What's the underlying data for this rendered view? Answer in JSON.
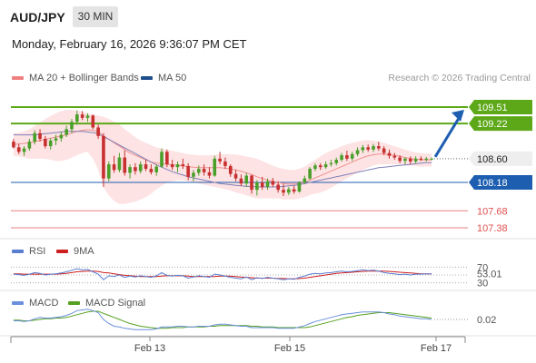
{
  "header": {
    "pair": "AUD/JPY",
    "timeframe": "30 MIN",
    "timestamp": "Monday, February 16, 2026 9:36:07 PM CET",
    "copyright": "Research © 2026 Trading Central"
  },
  "legend": {
    "ma20": "MA 20 + Bollinger Bands",
    "ma50": "MA 50",
    "rsi": "RSI",
    "rsi_ma": "9MA",
    "macd": "MACD",
    "macd_signal": "MACD Signal"
  },
  "colors": {
    "green": "#5da818",
    "blue": "#1e5eb0",
    "red": "#e05050",
    "candle_up": "#4a9e2a",
    "candle_down": "#c73030",
    "band_fill": "#fde0e0",
    "ma20": "#f09090",
    "ma50": "#8080b8",
    "rsi": "#5b7fd0",
    "rsi_ma": "#cc2020",
    "macd": "#6a8fdc",
    "macd_signal": "#55a020",
    "current": "#eeeeee"
  },
  "chart_data": {
    "type": "candlestick",
    "title": "AUD/JPY",
    "x_ticks": [
      "Feb 13",
      "Feb 15",
      "Feb 17"
    ],
    "ylim": [
      107.3,
      109.75
    ],
    "current_price": 108.6,
    "levels": [
      {
        "value": 109.51,
        "label": "109.51",
        "kind": "resistance",
        "style": "box-green"
      },
      {
        "value": 109.22,
        "label": "109.22",
        "kind": "resistance",
        "style": "box-green"
      },
      {
        "value": 108.6,
        "label": "108.60",
        "kind": "current",
        "style": "box-light"
      },
      {
        "value": 108.18,
        "label": "108.18",
        "kind": "pivot",
        "style": "box-blue"
      },
      {
        "value": 107.68,
        "label": "107.68",
        "kind": "support",
        "style": "text-red"
      },
      {
        "value": 107.38,
        "label": "107.38",
        "kind": "support",
        "style": "text-red"
      }
    ],
    "candles": [
      [
        108.9,
        108.95,
        108.78,
        108.8
      ],
      [
        108.8,
        108.86,
        108.68,
        108.72
      ],
      [
        108.72,
        108.82,
        108.65,
        108.78
      ],
      [
        108.78,
        108.95,
        108.74,
        108.9
      ],
      [
        108.9,
        109.1,
        108.85,
        109.05
      ],
      [
        109.05,
        109.12,
        108.9,
        108.95
      ],
      [
        108.95,
        109.0,
        108.78,
        108.82
      ],
      [
        108.82,
        108.96,
        108.76,
        108.92
      ],
      [
        108.92,
        109.02,
        108.84,
        108.96
      ],
      [
        108.96,
        109.08,
        108.9,
        109.02
      ],
      [
        109.02,
        109.18,
        108.98,
        109.12
      ],
      [
        109.12,
        109.3,
        109.05,
        109.25
      ],
      [
        109.25,
        109.45,
        109.2,
        109.38
      ],
      [
        109.38,
        109.44,
        109.28,
        109.32
      ],
      [
        109.32,
        109.4,
        109.25,
        109.36
      ],
      [
        109.36,
        109.38,
        109.12,
        109.15
      ],
      [
        109.15,
        109.2,
        108.95,
        109.0
      ],
      [
        109.0,
        109.05,
        108.1,
        108.25
      ],
      [
        108.25,
        108.55,
        108.2,
        108.5
      ],
      [
        108.5,
        108.65,
        108.35,
        108.4
      ],
      [
        108.4,
        108.7,
        108.36,
        108.62
      ],
      [
        108.62,
        108.75,
        108.3,
        108.35
      ],
      [
        108.35,
        108.5,
        108.25,
        108.45
      ],
      [
        108.45,
        108.52,
        108.32,
        108.38
      ],
      [
        108.38,
        108.55,
        108.34,
        108.5
      ],
      [
        108.5,
        108.58,
        108.38,
        108.42
      ],
      [
        108.42,
        108.5,
        108.32,
        108.36
      ],
      [
        108.36,
        108.5,
        108.3,
        108.46
      ],
      [
        108.46,
        108.78,
        108.44,
        108.72
      ],
      [
        108.72,
        108.76,
        108.45,
        108.5
      ],
      [
        108.5,
        108.58,
        108.4,
        108.45
      ],
      [
        108.45,
        108.55,
        108.36,
        108.5
      ],
      [
        108.5,
        108.6,
        108.42,
        108.47
      ],
      [
        108.47,
        108.52,
        108.22,
        108.28
      ],
      [
        108.28,
        108.4,
        108.2,
        108.35
      ],
      [
        108.35,
        108.48,
        108.3,
        108.42
      ],
      [
        108.42,
        108.5,
        108.3,
        108.36
      ],
      [
        108.36,
        108.45,
        108.25,
        108.3
      ],
      [
        108.3,
        108.65,
        108.28,
        108.6
      ],
      [
        108.6,
        108.72,
        108.5,
        108.55
      ],
      [
        108.55,
        108.62,
        108.42,
        108.47
      ],
      [
        108.47,
        108.5,
        108.28,
        108.33
      ],
      [
        108.33,
        108.4,
        108.2,
        108.25
      ],
      [
        108.25,
        108.32,
        108.12,
        108.16
      ],
      [
        108.16,
        108.35,
        108.1,
        108.3
      ],
      [
        108.3,
        108.32,
        107.98,
        108.05
      ],
      [
        108.05,
        108.22,
        107.95,
        108.18
      ],
      [
        108.18,
        108.28,
        108.05,
        108.1
      ],
      [
        108.1,
        108.25,
        108.05,
        108.2
      ],
      [
        108.2,
        108.26,
        108.1,
        108.14
      ],
      [
        108.14,
        108.2,
        108.0,
        108.05
      ],
      [
        108.05,
        108.15,
        107.94,
        108.0
      ],
      [
        108.0,
        108.1,
        107.96,
        108.06
      ],
      [
        108.06,
        108.12,
        107.98,
        108.02
      ],
      [
        108.02,
        108.2,
        108.0,
        108.18
      ],
      [
        108.18,
        108.3,
        108.15,
        108.25
      ],
      [
        108.25,
        108.45,
        108.22,
        108.42
      ],
      [
        108.42,
        108.52,
        108.38,
        108.48
      ],
      [
        108.48,
        108.52,
        108.4,
        108.45
      ],
      [
        108.45,
        108.55,
        108.42,
        108.5
      ],
      [
        108.5,
        108.58,
        108.46,
        108.52
      ],
      [
        108.52,
        108.62,
        108.48,
        108.58
      ],
      [
        108.58,
        108.7,
        108.55,
        108.66
      ],
      [
        108.66,
        108.74,
        108.56,
        108.6
      ],
      [
        108.6,
        108.72,
        108.56,
        108.68
      ],
      [
        108.68,
        108.8,
        108.64,
        108.75
      ],
      [
        108.75,
        108.84,
        108.7,
        108.8
      ],
      [
        108.8,
        108.85,
        108.72,
        108.76
      ],
      [
        108.76,
        108.86,
        108.72,
        108.82
      ],
      [
        108.82,
        108.9,
        108.74,
        108.78
      ],
      [
        108.78,
        108.82,
        108.66,
        108.7
      ],
      [
        108.7,
        108.76,
        108.6,
        108.65
      ],
      [
        108.65,
        108.7,
        108.58,
        108.62
      ],
      [
        108.62,
        108.66,
        108.52,
        108.56
      ],
      [
        108.56,
        108.62,
        108.5,
        108.6
      ],
      [
        108.6,
        108.64,
        108.5,
        108.55
      ],
      [
        108.55,
        108.64,
        108.52,
        108.6
      ],
      [
        108.6,
        108.64,
        108.56,
        108.58
      ],
      [
        108.58,
        108.63,
        108.55,
        108.6
      ],
      [
        108.6,
        108.62,
        108.57,
        108.6
      ]
    ],
    "ma20": [
      108.85,
      108.86,
      108.87,
      108.88,
      108.9,
      108.92,
      108.94,
      108.96,
      108.98,
      109.0,
      109.02,
      109.05,
      109.08,
      109.1,
      109.11,
      109.1,
      109.08,
      109.0,
      108.94,
      108.88,
      108.82,
      108.76,
      108.7,
      108.66,
      108.62,
      108.58,
      108.54,
      108.52,
      108.51,
      108.5,
      108.49,
      108.48,
      108.47,
      108.46,
      108.45,
      108.44,
      108.44,
      108.44,
      108.44,
      108.44,
      108.43,
      108.42,
      108.4,
      108.38,
      108.35,
      108.32,
      108.28,
      108.25,
      108.22,
      108.2,
      108.18,
      108.16,
      108.15,
      108.15,
      108.16,
      108.18,
      108.22,
      108.26,
      108.3,
      108.34,
      108.38,
      108.42,
      108.46,
      108.5,
      108.54,
      108.58,
      108.62,
      108.65,
      108.67,
      108.68,
      108.68,
      108.67,
      108.66,
      108.64,
      108.62,
      108.6,
      108.59,
      108.58,
      108.58,
      108.58
    ],
    "bb_upper": [
      109.05,
      109.06,
      109.08,
      109.12,
      109.18,
      109.24,
      109.3,
      109.35,
      109.4,
      109.44,
      109.46,
      109.46,
      109.45,
      109.43,
      109.4,
      109.38,
      109.36,
      109.34,
      109.3,
      109.25,
      109.2,
      109.12,
      109.05,
      108.98,
      108.92,
      108.88,
      108.84,
      108.8,
      108.78,
      108.76,
      108.74,
      108.72,
      108.7,
      108.68,
      108.67,
      108.66,
      108.66,
      108.66,
      108.67,
      108.68,
      108.68,
      108.68,
      108.67,
      108.66,
      108.64,
      108.62,
      108.6,
      108.56,
      108.52,
      108.48,
      108.44,
      108.42,
      108.4,
      108.4,
      108.42,
      108.46,
      108.52,
      108.58,
      108.64,
      108.7,
      108.74,
      108.78,
      108.82,
      108.85,
      108.88,
      108.9,
      108.92,
      108.93,
      108.92,
      108.9,
      108.88,
      108.85,
      108.82,
      108.79,
      108.76,
      108.73,
      108.71,
      108.7,
      108.69,
      108.69
    ],
    "bb_lower": [
      108.65,
      108.64,
      108.62,
      108.6,
      108.6,
      108.6,
      108.6,
      108.58,
      108.56,
      108.56,
      108.58,
      108.62,
      108.66,
      108.7,
      108.72,
      108.6,
      108.4,
      108.1,
      107.95,
      107.85,
      107.8,
      107.8,
      107.82,
      107.84,
      107.88,
      107.92,
      107.98,
      108.06,
      108.12,
      108.18,
      108.2,
      108.22,
      108.22,
      108.2,
      108.18,
      108.16,
      108.14,
      108.12,
      108.1,
      108.08,
      108.06,
      108.04,
      108.0,
      107.98,
      107.95,
      107.92,
      107.9,
      107.9,
      107.9,
      107.9,
      107.9,
      107.88,
      107.88,
      107.88,
      107.9,
      107.92,
      107.96,
      107.98,
      108.0,
      108.04,
      108.08,
      108.14,
      108.2,
      108.25,
      108.3,
      108.36,
      108.4,
      108.44,
      108.48,
      108.5,
      108.5,
      108.5,
      108.5,
      108.5,
      108.48,
      108.48,
      108.47,
      108.46,
      108.46,
      108.46
    ],
    "ma50": [
      109.02,
      109.02,
      109.02,
      109.02,
      109.02,
      109.03,
      109.04,
      109.05,
      109.06,
      109.07,
      109.08,
      109.08,
      109.08,
      109.08,
      109.07,
      109.06,
      109.04,
      108.99,
      108.94,
      108.89,
      108.84,
      108.79,
      108.74,
      108.69,
      108.64,
      108.59,
      108.54,
      108.49,
      108.45,
      108.41,
      108.37,
      108.34,
      108.31,
      108.28,
      108.26,
      108.24,
      108.22,
      108.2,
      108.18,
      108.16,
      108.15,
      108.14,
      108.13,
      108.12,
      108.11,
      108.11,
      108.1,
      108.1,
      108.1,
      108.1,
      108.1,
      108.11,
      108.12,
      108.13,
      108.14,
      108.16,
      108.18,
      108.2,
      108.22,
      108.24,
      108.26,
      108.28,
      108.3,
      108.32,
      108.34,
      108.36,
      108.38,
      108.4,
      108.42,
      108.44,
      108.45,
      108.46,
      108.47,
      108.48,
      108.49,
      108.5,
      108.51,
      108.52,
      108.53,
      108.53
    ],
    "rsi": {
      "levels": [
        70,
        50,
        30
      ],
      "ylim": [
        20,
        80
      ],
      "value_label": "53.01",
      "rsi": [
        52,
        51,
        49,
        52,
        56,
        54,
        50,
        52,
        53,
        55,
        58,
        62,
        66,
        63,
        64,
        58,
        52,
        38,
        48,
        46,
        50,
        44,
        47,
        45,
        48,
        46,
        44,
        48,
        56,
        49,
        47,
        49,
        48,
        42,
        45,
        48,
        46,
        44,
        52,
        50,
        47,
        44,
        42,
        40,
        45,
        38,
        43,
        41,
        44,
        42,
        40,
        38,
        40,
        39,
        44,
        47,
        52,
        54,
        53,
        55,
        56,
        58,
        60,
        58,
        59,
        61,
        63,
        61,
        62,
        60,
        56,
        54,
        53,
        51,
        52,
        50,
        52,
        52,
        53,
        53
      ],
      "ma9": [
        53,
        53,
        52,
        52,
        52,
        52,
        52,
        52,
        52,
        53,
        54,
        56,
        58,
        59,
        60,
        60,
        59,
        56,
        55,
        53,
        51,
        49,
        48,
        47,
        46,
        46,
        46,
        46,
        47,
        48,
        48,
        48,
        48,
        47,
        46,
        46,
        46,
        46,
        46,
        47,
        47,
        47,
        46,
        45,
        44,
        43,
        42,
        42,
        42,
        42,
        41,
        41,
        40,
        40,
        41,
        42,
        44,
        46,
        48,
        50,
        52,
        54,
        55,
        56,
        57,
        58,
        59,
        60,
        60,
        60,
        60,
        59,
        58,
        57,
        56,
        55,
        54,
        53,
        53,
        53
      ]
    },
    "macd_panel": {
      "value_label": "0.02",
      "macd": [
        0.0,
        0.0,
        -0.01,
        0.0,
        0.03,
        0.05,
        0.04,
        0.04,
        0.05,
        0.06,
        0.08,
        0.11,
        0.15,
        0.16,
        0.17,
        0.15,
        0.12,
        0.02,
        -0.04,
        -0.08,
        -0.09,
        -0.11,
        -0.12,
        -0.13,
        -0.13,
        -0.13,
        -0.13,
        -0.12,
        -0.09,
        -0.09,
        -0.09,
        -0.08,
        -0.08,
        -0.09,
        -0.09,
        -0.08,
        -0.08,
        -0.08,
        -0.06,
        -0.05,
        -0.05,
        -0.06,
        -0.07,
        -0.08,
        -0.08,
        -0.1,
        -0.1,
        -0.1,
        -0.1,
        -0.1,
        -0.11,
        -0.11,
        -0.11,
        -0.11,
        -0.09,
        -0.07,
        -0.04,
        -0.01,
        0.01,
        0.03,
        0.05,
        0.07,
        0.09,
        0.1,
        0.11,
        0.12,
        0.13,
        0.13,
        0.13,
        0.13,
        0.12,
        0.1,
        0.09,
        0.07,
        0.06,
        0.05,
        0.04,
        0.03,
        0.03,
        0.02
      ],
      "signal": [
        0.01,
        0.01,
        0.0,
        0.0,
        0.01,
        0.02,
        0.03,
        0.03,
        0.04,
        0.04,
        0.05,
        0.07,
        0.09,
        0.11,
        0.13,
        0.14,
        0.14,
        0.11,
        0.08,
        0.05,
        0.02,
        -0.01,
        -0.04,
        -0.06,
        -0.08,
        -0.09,
        -0.1,
        -0.11,
        -0.11,
        -0.11,
        -0.1,
        -0.1,
        -0.1,
        -0.09,
        -0.09,
        -0.09,
        -0.09,
        -0.08,
        -0.08,
        -0.07,
        -0.07,
        -0.07,
        -0.07,
        -0.07,
        -0.07,
        -0.08,
        -0.08,
        -0.09,
        -0.09,
        -0.09,
        -0.1,
        -0.1,
        -0.1,
        -0.1,
        -0.1,
        -0.1,
        -0.09,
        -0.07,
        -0.05,
        -0.03,
        -0.01,
        0.01,
        0.03,
        0.05,
        0.06,
        0.08,
        0.09,
        0.1,
        0.11,
        0.12,
        0.12,
        0.12,
        0.11,
        0.1,
        0.09,
        0.08,
        0.07,
        0.06,
        0.05,
        0.04
      ]
    }
  }
}
